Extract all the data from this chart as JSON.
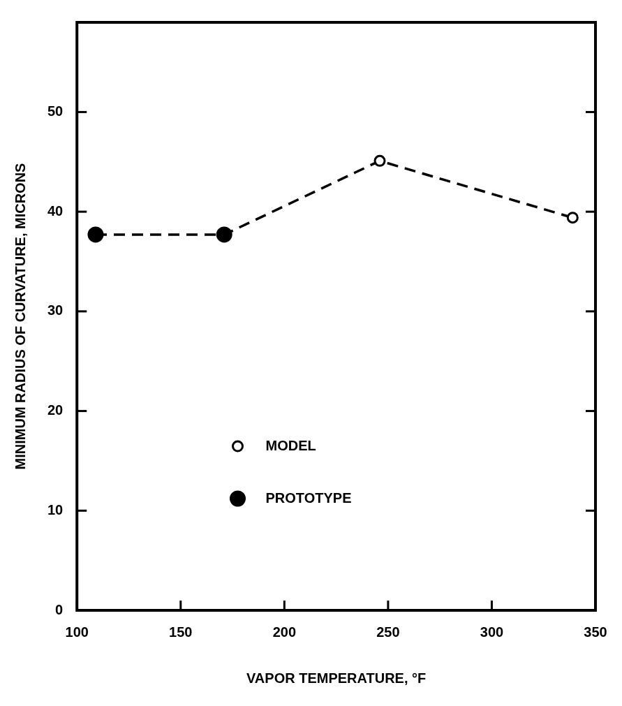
{
  "chart_data": {
    "type": "scatter",
    "xlabel": "VAPOR TEMPERATURE, °F",
    "ylabel": "MINIMUM RADIUS OF CURVATURE, MICRONS",
    "xlim": [
      100,
      350
    ],
    "xticks": [
      100,
      150,
      200,
      250,
      300,
      350
    ],
    "ylim": [
      0,
      59
    ],
    "yticks": [
      0,
      10,
      20,
      30,
      40,
      50
    ],
    "grid": false,
    "legend": "bottom",
    "marker": "circle",
    "series": [
      {
        "type": "line",
        "color": "#000000",
        "line_style": "dashed",
        "marker": "none",
        "x": [
          109,
          171,
          246,
          339
        ],
        "values": [
          37.7,
          37.7,
          45.1,
          39.4
        ]
      },
      {
        "name": "MODEL",
        "color": "#000000",
        "x": [
          246,
          339
        ],
        "values": [
          45.1,
          39.4
        ]
      },
      {
        "name": "PROTOTYPE",
        "color": "#000000",
        "x": [
          109,
          171
        ],
        "values": [
          37.7,
          37.7
        ]
      }
    ]
  }
}
